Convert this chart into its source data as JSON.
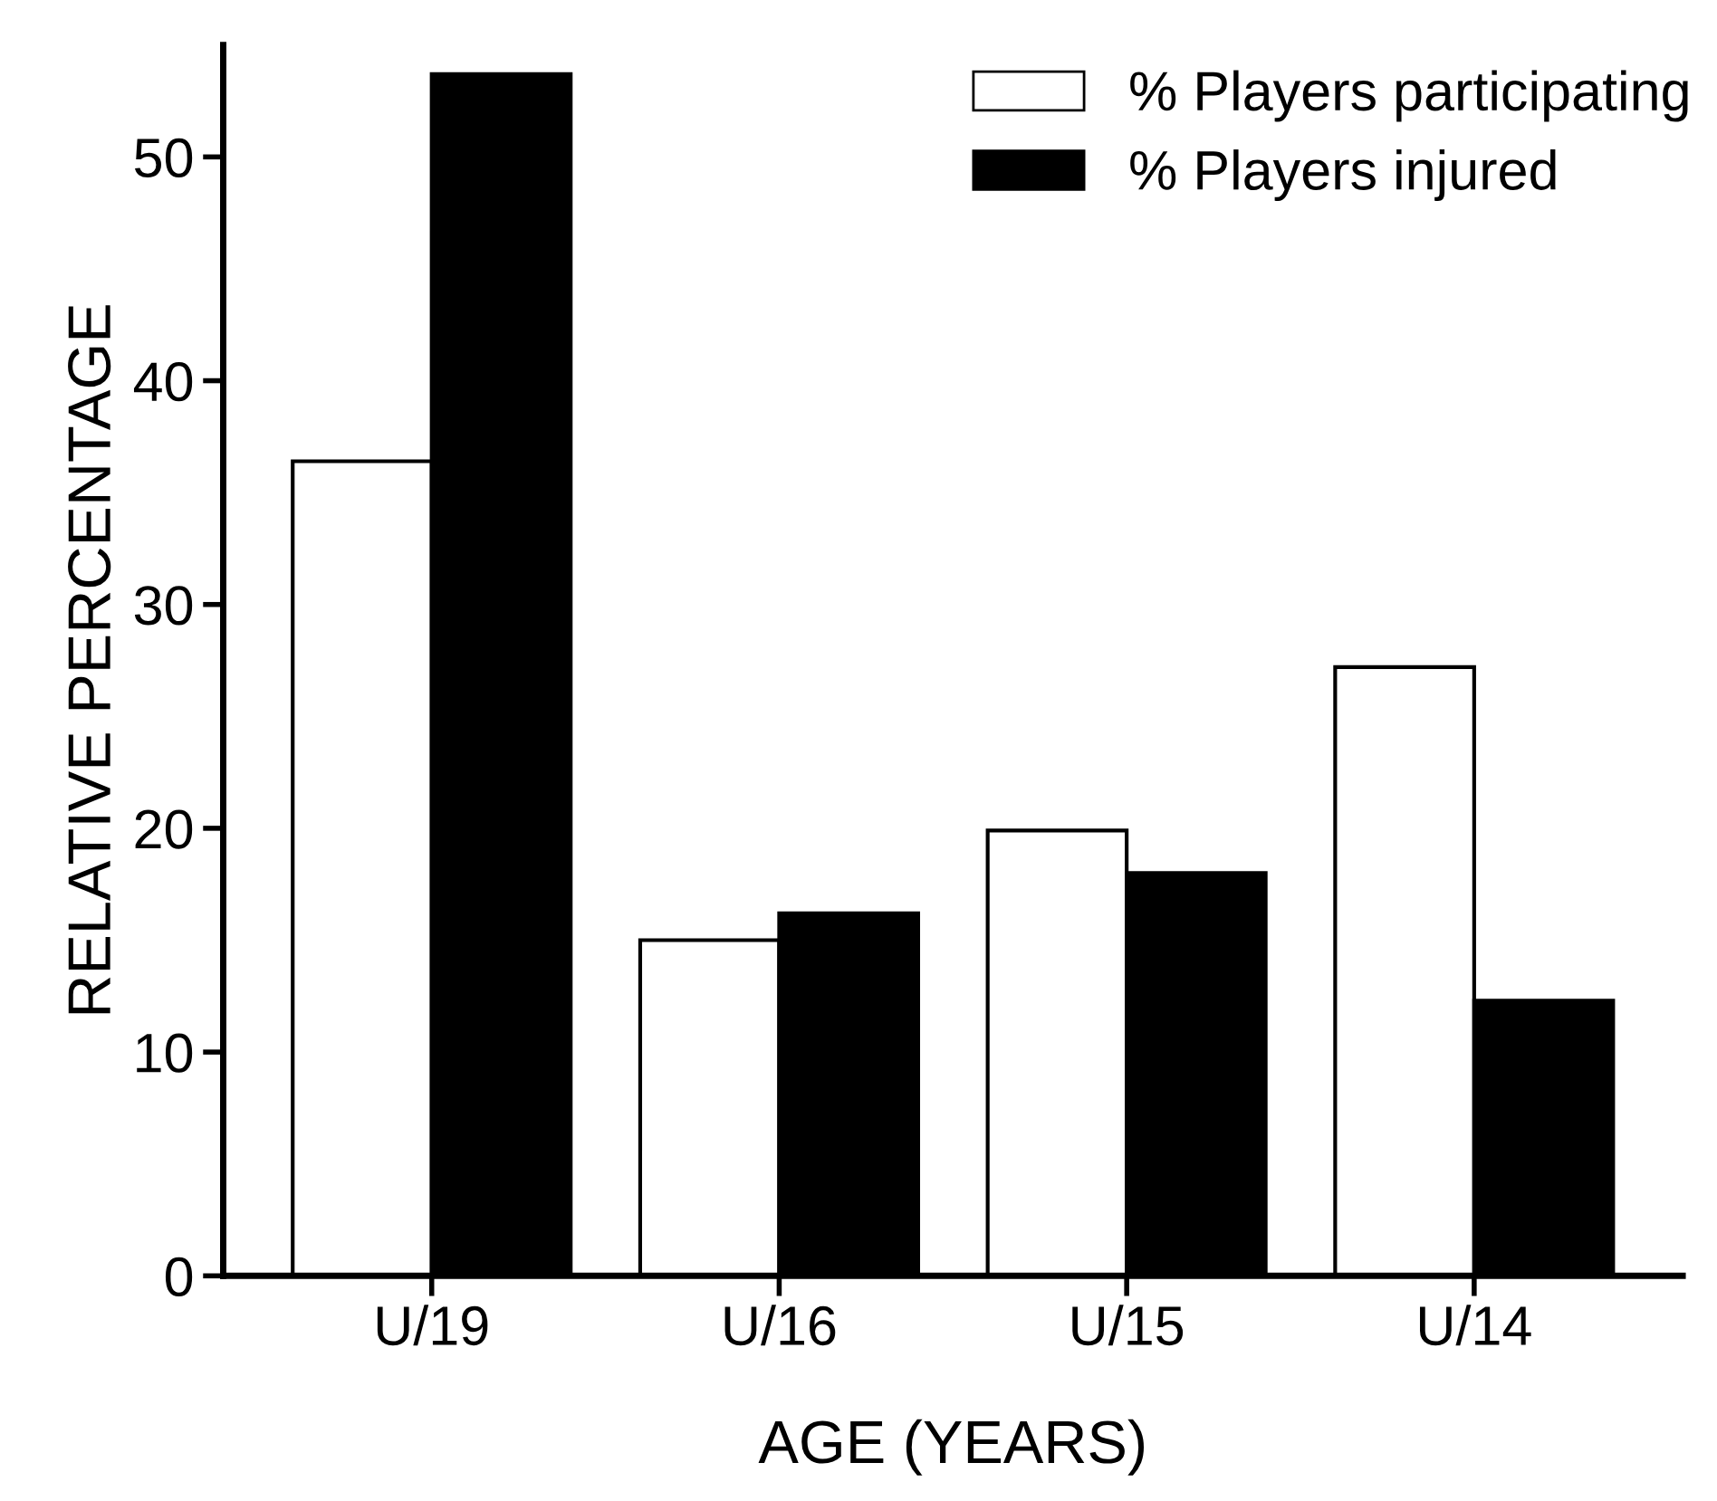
{
  "chart_data": {
    "type": "bar",
    "xlabel": "AGE (YEARS)",
    "ylabel": "RELATIVE PERCENTAGE",
    "categories": [
      "U/19",
      "U/16",
      "U/15",
      "U/14"
    ],
    "series": [
      {
        "name": "% Players participating",
        "color": "#ffffff",
        "values": [
          36.4,
          15.0,
          19.9,
          27.2
        ]
      },
      {
        "name": "% Players injured",
        "color": "#000000",
        "values": [
          53.7,
          16.2,
          18.0,
          12.3
        ]
      }
    ],
    "ylim": [
      0,
      55
    ],
    "yticks": [
      0,
      10,
      20,
      30,
      40,
      50
    ],
    "grid": false,
    "legend": "top right"
  }
}
